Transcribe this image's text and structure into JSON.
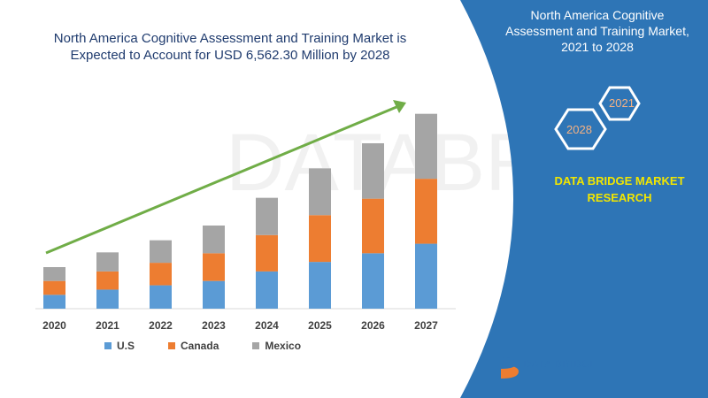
{
  "chart_title": "North America Cognitive Assessment and Training Market is Expected to Account for USD 6,562.30 Million by 2028",
  "panel_title": "North America Cognitive Assessment and Training Market, 2021 to 2028",
  "hex_labels": [
    "2021",
    "2028"
  ],
  "brand_name": "DATA BRIDGE MARKET RESEARCH",
  "logo_text": "DATA BRIDGE",
  "colors": {
    "us": "#5b9bd5",
    "canada": "#ed7d31",
    "mexico": "#a5a5a5",
    "panel": "#2e75b6",
    "arrow": "#70ad47"
  },
  "chart_data": {
    "type": "bar",
    "stacked": true,
    "categories": [
      "2020",
      "2021",
      "2022",
      "2023",
      "2024",
      "2025",
      "2026",
      "2027"
    ],
    "series": [
      {
        "name": "U.S",
        "values": [
          16,
          22,
          27,
          32,
          43,
          54,
          64,
          75
        ]
      },
      {
        "name": "Canada",
        "values": [
          16,
          21,
          26,
          32,
          42,
          54,
          63,
          75
        ]
      },
      {
        "name": "Mexico",
        "values": [
          16,
          22,
          26,
          32,
          43,
          54,
          64,
          75
        ]
      }
    ],
    "ylim": [
      0,
      240
    ],
    "grid": false,
    "legend": "bottom"
  }
}
